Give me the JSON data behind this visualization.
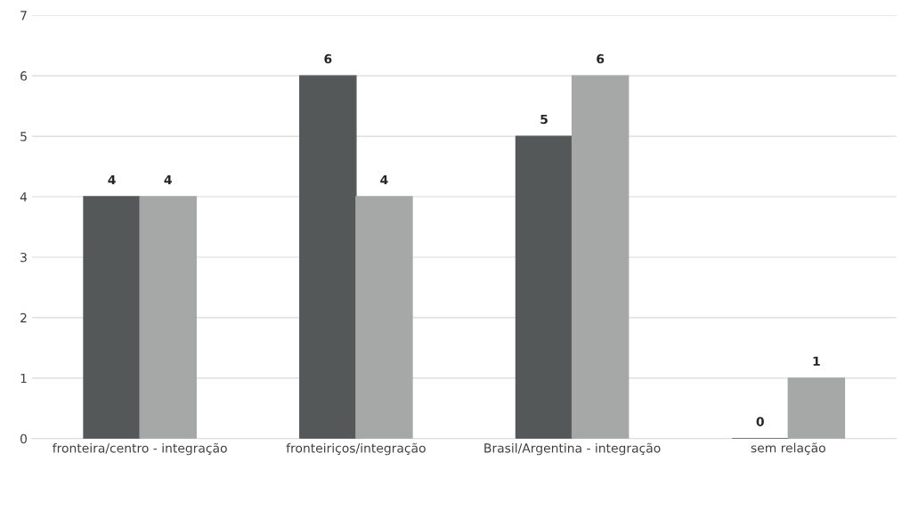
{
  "chart_data": {
    "type": "bar",
    "categories": [
      "fronteira/centro - integração",
      "fronteiriços/integração",
      "Brasil/Argentina - integração",
      "sem relação"
    ],
    "series": [
      {
        "color": "#545859",
        "values": [
          4,
          6,
          5,
          0
        ]
      },
      {
        "color": "#a6a8a8",
        "values": [
          4,
          4,
          6,
          1
        ]
      }
    ],
    "ylim": [
      0,
      7
    ],
    "yticks": [
      0,
      1,
      2,
      3,
      4,
      5,
      6,
      7
    ],
    "grid": "y",
    "data_labels": true
  }
}
